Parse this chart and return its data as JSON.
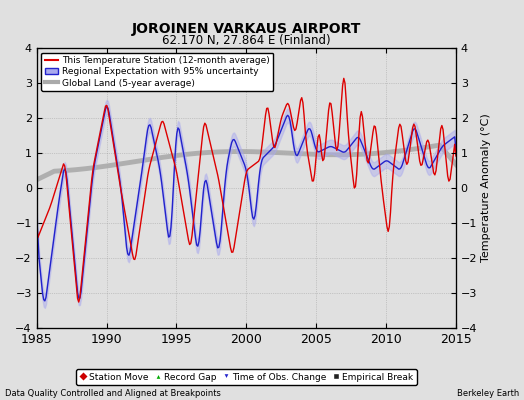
{
  "title": "JOROINEN VARKAUS AIRPORT",
  "subtitle": "62.170 N, 27.864 E (Finland)",
  "xlabel_left": "Data Quality Controlled and Aligned at Breakpoints",
  "xlabel_right": "Berkeley Earth",
  "ylabel": "Temperature Anomaly (°C)",
  "xlim": [
    1985,
    2015
  ],
  "ylim": [
    -4,
    4
  ],
  "yticks": [
    -4,
    -3,
    -2,
    -1,
    0,
    1,
    2,
    3,
    4
  ],
  "xticks": [
    1985,
    1990,
    1995,
    2000,
    2005,
    2010,
    2015
  ],
  "bg_color": "#e0e0e0",
  "plot_bg_color": "#e0e0e0",
  "red_line_color": "#dd0000",
  "blue_line_color": "#2222cc",
  "blue_fill_color": "#aaaaee",
  "gray_line_color": "#aaaaaa",
  "legend_labels": [
    "This Temperature Station (12-month average)",
    "Regional Expectation with 95% uncertainty",
    "Global Land (5-year average)"
  ],
  "marker_labels": [
    "Station Move",
    "Record Gap",
    "Time of Obs. Change",
    "Empirical Break"
  ],
  "marker_colors": [
    "#cc0000",
    "#00aa00",
    "#2222cc",
    "#222222"
  ],
  "marker_styles": [
    "D",
    "^",
    "v",
    "s"
  ]
}
